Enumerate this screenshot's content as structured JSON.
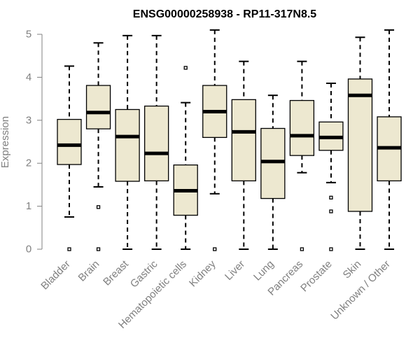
{
  "chart_data": {
    "type": "boxplot",
    "title": "ENSG00000258938 - RP11-317N8.5",
    "xlabel": "",
    "ylabel": "Expression",
    "ylim": [
      0,
      5
    ],
    "yticks": [
      0,
      1,
      2,
      3,
      4,
      5
    ],
    "grid": false,
    "categories": [
      "Bladder",
      "Brain",
      "Breast",
      "Gastric",
      "Hematopoietic cells",
      "Kidney",
      "Liver",
      "Lung",
      "Pancreas",
      "Prostate",
      "Skin",
      "Unknown / Other"
    ],
    "boxes": [
      {
        "name": "Bladder",
        "whisker_low": 0.75,
        "q1": 1.97,
        "median": 2.42,
        "q3": 3.02,
        "whisker_high": 4.26,
        "outliers": [
          0.0
        ]
      },
      {
        "name": "Brain",
        "whisker_low": 1.45,
        "q1": 2.8,
        "median": 3.18,
        "q3": 3.81,
        "whisker_high": 4.8,
        "outliers": [
          0.98,
          0.0
        ]
      },
      {
        "name": "Breast",
        "whisker_low": 0.0,
        "q1": 1.58,
        "median": 2.62,
        "q3": 3.25,
        "whisker_high": 4.97,
        "outliers": []
      },
      {
        "name": "Gastric",
        "whisker_low": 0.0,
        "q1": 1.59,
        "median": 2.23,
        "q3": 3.33,
        "whisker_high": 4.97,
        "outliers": []
      },
      {
        "name": "Hematopoietic cells",
        "whisker_low": 0.0,
        "q1": 0.79,
        "median": 1.36,
        "q3": 1.96,
        "whisker_high": 3.41,
        "outliers": [
          4.22
        ]
      },
      {
        "name": "Kidney",
        "whisker_low": 1.29,
        "q1": 2.6,
        "median": 3.2,
        "q3": 3.81,
        "whisker_high": 5.1,
        "outliers": [
          0.0
        ]
      },
      {
        "name": "Liver",
        "whisker_low": 0.0,
        "q1": 1.59,
        "median": 2.73,
        "q3": 3.48,
        "whisker_high": 4.37,
        "outliers": []
      },
      {
        "name": "Lung",
        "whisker_low": 0.0,
        "q1": 1.18,
        "median": 2.04,
        "q3": 2.81,
        "whisker_high": 3.58,
        "outliers": []
      },
      {
        "name": "Pancreas",
        "whisker_low": 1.78,
        "q1": 2.18,
        "median": 2.64,
        "q3": 3.46,
        "whisker_high": 4.37,
        "outliers": [
          0.0
        ]
      },
      {
        "name": "Prostate",
        "whisker_low": 1.55,
        "q1": 2.3,
        "median": 2.6,
        "q3": 2.96,
        "whisker_high": 3.86,
        "outliers": [
          1.2,
          0.88,
          0.0
        ]
      },
      {
        "name": "Skin",
        "whisker_low": 0.0,
        "q1": 0.88,
        "median": 3.58,
        "q3": 3.96,
        "whisker_high": 4.93,
        "outliers": []
      },
      {
        "name": "Unknown / Other",
        "whisker_low": 0.0,
        "q1": 1.59,
        "median": 2.36,
        "q3": 3.08,
        "whisker_high": 5.1,
        "outliers": []
      }
    ],
    "colors": {
      "box_fill": "#ede8d0",
      "box_stroke": "#000000",
      "axis": "#808080",
      "text": "#808080",
      "title": "#000000"
    }
  }
}
